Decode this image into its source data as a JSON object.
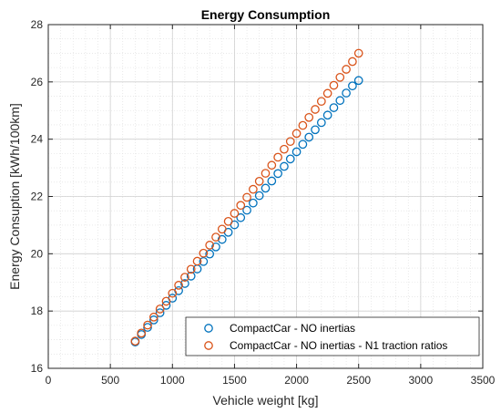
{
  "chart_data": {
    "type": "scatter",
    "title": "Energy Consumption",
    "xlabel": "Vehicle weight [kg]",
    "ylabel": "Energy Consuption [kWh/100km]",
    "xlim": [
      0,
      3500
    ],
    "ylim": [
      16,
      28
    ],
    "xticks": [
      0,
      500,
      1000,
      1500,
      2000,
      2500,
      3000,
      3500
    ],
    "yticks": [
      16,
      18,
      20,
      22,
      24,
      26,
      28
    ],
    "grid": true,
    "minor_grid": true,
    "legend_position": "bottom-right",
    "x": [
      700,
      750,
      800,
      850,
      900,
      950,
      1000,
      1050,
      1100,
      1150,
      1200,
      1250,
      1300,
      1350,
      1400,
      1450,
      1500,
      1550,
      1600,
      1650,
      1700,
      1750,
      1800,
      1850,
      1900,
      1950,
      2000,
      2050,
      2100,
      2150,
      2200,
      2250,
      2300,
      2350,
      2400,
      2450,
      2500
    ],
    "series": [
      {
        "name": "CompactCar - NO inertias",
        "color": "#0072BD",
        "marker": "circle",
        "values": [
          16.92,
          17.18,
          17.43,
          17.69,
          17.94,
          18.2,
          18.45,
          18.71,
          18.96,
          19.22,
          19.47,
          19.73,
          19.99,
          20.24,
          20.5,
          20.75,
          21.01,
          21.26,
          21.52,
          21.77,
          22.03,
          22.29,
          22.54,
          22.8,
          23.05,
          23.31,
          23.56,
          23.82,
          24.07,
          24.33,
          24.58,
          24.84,
          25.1,
          25.35,
          25.61,
          25.86,
          26.05
        ]
      },
      {
        "name": "CompactCar - NO inertias - N1 traction ratios",
        "color": "#D95319",
        "marker": "circle",
        "values": [
          16.95,
          17.23,
          17.51,
          17.79,
          18.07,
          18.34,
          18.62,
          18.9,
          19.18,
          19.46,
          19.74,
          20.02,
          20.3,
          20.58,
          20.86,
          21.13,
          21.41,
          21.69,
          21.97,
          22.25,
          22.53,
          22.81,
          23.09,
          23.37,
          23.65,
          23.92,
          24.2,
          24.48,
          24.76,
          25.04,
          25.32,
          25.6,
          25.88,
          26.16,
          26.44,
          26.71,
          27.0
        ]
      }
    ]
  }
}
